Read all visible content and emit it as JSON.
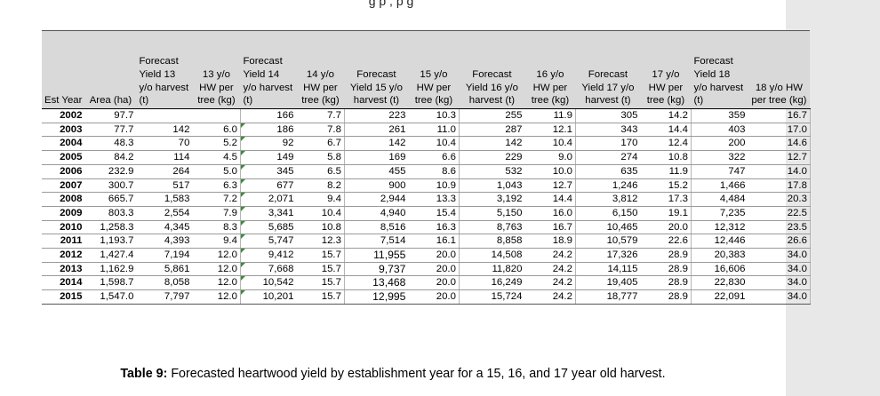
{
  "top_text": "g                                                              p        ,                 p          g",
  "columns": [
    "Est Year",
    "Area (ha)",
    "Forecast Yield 13 y/o harvest (t)",
    "13 y/o HW per tree (kg)",
    "Forecast Yield 14 y/o harvest (t)",
    "14 y/o HW per tree (kg)",
    "Forecast Yield 15 y/o harvest (t)",
    "15 y/o HW per tree (kg)",
    "Forecast Yield 16 y/o harvest (t)",
    "16 y/o HW per tree (kg)",
    "Forecast Yield 17 y/o harvest (t)",
    "17 y/o HW per tree (kg)",
    "Forecast Yield 18 y/o harvest (t)",
    "18 y/o HW per tree (kg)"
  ],
  "rows": [
    [
      "2002",
      "97.7",
      "",
      "",
      "166",
      "7.7",
      "223",
      "10.3",
      "255",
      "11.9",
      "305",
      "14.2",
      "359",
      "16.7"
    ],
    [
      "2003",
      "77.7",
      "142",
      "6.0",
      "186",
      "7.8",
      "261",
      "11.0",
      "287",
      "12.1",
      "343",
      "14.4",
      "403",
      "17.0"
    ],
    [
      "2004",
      "48.3",
      "70",
      "5.2",
      "92",
      "6.7",
      "142",
      "10.4",
      "142",
      "10.4",
      "170",
      "12.4",
      "200",
      "14.6"
    ],
    [
      "2005",
      "84.2",
      "114",
      "4.5",
      "149",
      "5.8",
      "169",
      "6.6",
      "229",
      "9.0",
      "274",
      "10.8",
      "322",
      "12.7"
    ],
    [
      "2006",
      "232.9",
      "264",
      "5.0",
      "345",
      "6.5",
      "455",
      "8.6",
      "532",
      "10.0",
      "635",
      "11.9",
      "747",
      "14.0"
    ],
    [
      "2007",
      "300.7",
      "517",
      "6.3",
      "677",
      "8.2",
      "900",
      "10.9",
      "1,043",
      "12.7",
      "1,246",
      "15.2",
      "1,466",
      "17.8"
    ],
    [
      "2008",
      "665.7",
      "1,583",
      "7.2",
      "2,071",
      "9.4",
      "2,944",
      "13.3",
      "3,192",
      "14.4",
      "3,812",
      "17.3",
      "4,484",
      "20.3"
    ],
    [
      "2009",
      "803.3",
      "2,554",
      "7.9",
      "3,341",
      "10.4",
      "4,940",
      "15.4",
      "5,150",
      "16.0",
      "6,150",
      "19.1",
      "7,235",
      "22.5"
    ],
    [
      "2010",
      "1,258.3",
      "4,345",
      "8.3",
      "5,685",
      "10.8",
      "8,516",
      "16.3",
      "8,763",
      "16.7",
      "10,465",
      "20.0",
      "12,312",
      "23.5"
    ],
    [
      "2011",
      "1,193.7",
      "4,393",
      "9.4",
      "5,747",
      "12.3",
      "7,514",
      "16.1",
      "8,858",
      "18.9",
      "10,579",
      "22.6",
      "12,446",
      "26.6"
    ],
    [
      "2012",
      "1,427.4",
      "7,194",
      "12.0",
      "9,412",
      "15.7",
      "11,955",
      "20.0",
      "14,508",
      "24.2",
      "17,326",
      "28.9",
      "20,383",
      "34.0"
    ],
    [
      "2013",
      "1,162.9",
      "5,861",
      "12.0",
      "7,668",
      "15.7",
      "9,737",
      "20.0",
      "11,820",
      "24.2",
      "14,115",
      "28.9",
      "16,606",
      "34.0"
    ],
    [
      "2014",
      "1,598.7",
      "8,058",
      "12.0",
      "10,542",
      "15.7",
      "13,468",
      "20.0",
      "16,249",
      "24.2",
      "19,405",
      "28.9",
      "22,830",
      "34.0"
    ],
    [
      "2015",
      "1,547.0",
      "7,797",
      "12.0",
      "10,201",
      "15.7",
      "12,995",
      "20.0",
      "15,724",
      "24.2",
      "18,777",
      "28.9",
      "22,091",
      "34.0"
    ]
  ],
  "caption_label": "Table 9:",
  "caption_text": " Forecasted heartwood yield by establishment year for a 15, 16, and 17 year old harvest."
}
